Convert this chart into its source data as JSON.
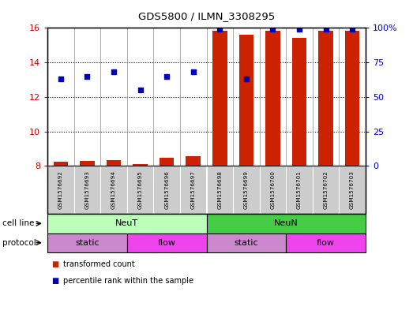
{
  "title": "GDS5800 / ILMN_3308295",
  "samples": [
    "GSM1576692",
    "GSM1576693",
    "GSM1576694",
    "GSM1576695",
    "GSM1576696",
    "GSM1576697",
    "GSM1576698",
    "GSM1576699",
    "GSM1576700",
    "GSM1576701",
    "GSM1576702",
    "GSM1576703"
  ],
  "transformed_count": [
    8.25,
    8.3,
    8.35,
    8.1,
    8.45,
    8.55,
    15.85,
    15.6,
    15.85,
    15.4,
    15.85,
    15.85
  ],
  "percentile_rank": [
    63,
    65,
    68,
    55,
    65,
    68,
    99,
    63,
    99,
    99,
    99,
    99
  ],
  "ylim_left": [
    8,
    16
  ],
  "ylim_right": [
    0,
    100
  ],
  "yticks_left": [
    8,
    10,
    12,
    14,
    16
  ],
  "yticks_right": [
    0,
    25,
    50,
    75,
    100
  ],
  "cell_line_groups": [
    {
      "label": "NeuT",
      "start": 0,
      "end": 6,
      "color": "#bbffbb"
    },
    {
      "label": "NeuN",
      "start": 6,
      "end": 12,
      "color": "#44cc44"
    }
  ],
  "protocol_groups": [
    {
      "label": "static",
      "start": 0,
      "end": 3,
      "color": "#cc88cc"
    },
    {
      "label": "flow",
      "start": 3,
      "end": 6,
      "color": "#ee44ee"
    },
    {
      "label": "static",
      "start": 6,
      "end": 9,
      "color": "#cc88cc"
    },
    {
      "label": "flow",
      "start": 9,
      "end": 12,
      "color": "#ee44ee"
    }
  ],
  "bar_color": "#cc2200",
  "dot_color": "#0000bb",
  "bg_color": "#ffffff",
  "tick_color_left": "#cc0000",
  "tick_color_right": "#0000cc",
  "sample_box_color": "#cccccc",
  "legend_items": [
    {
      "label": "transformed count",
      "color": "#cc2200"
    },
    {
      "label": "percentile rank within the sample",
      "color": "#0000bb"
    }
  ]
}
